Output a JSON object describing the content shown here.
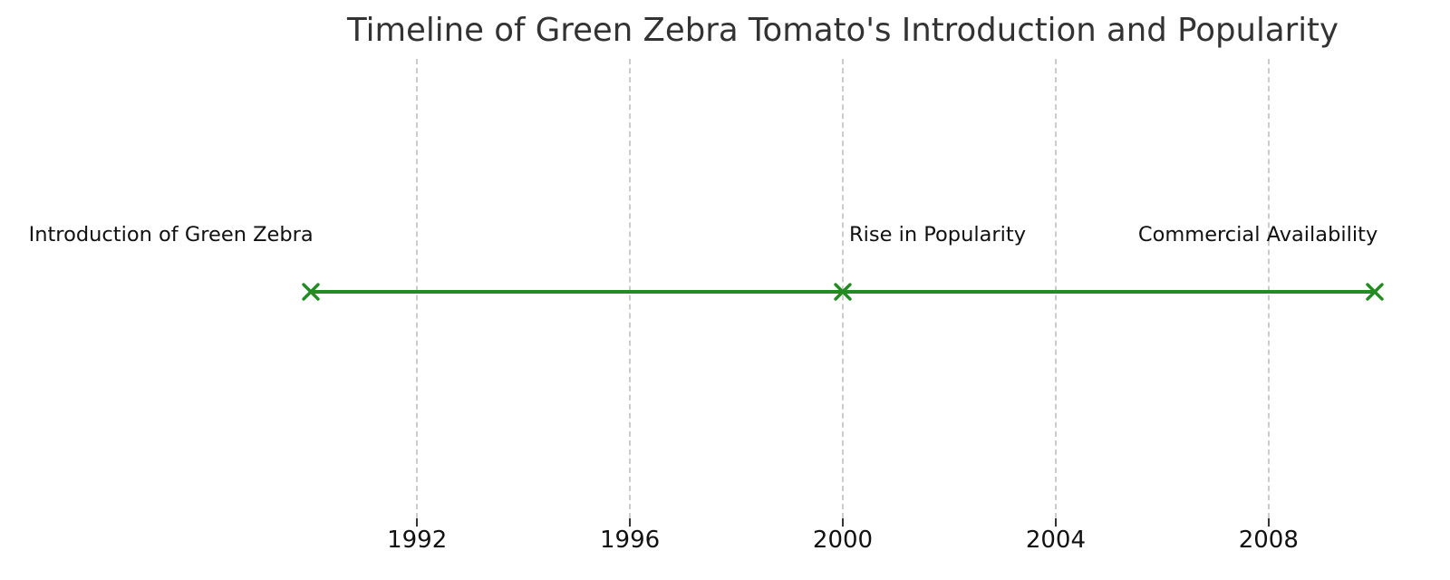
{
  "chart_data": {
    "type": "line",
    "title": "Timeline of Green Zebra Tomato's Introduction and Popularity",
    "events": [
      {
        "year": 1990,
        "label": "Introduction of Green Zebra",
        "label_align": "right"
      },
      {
        "year": 2000,
        "label": "Rise in Popularity",
        "label_align": "left"
      },
      {
        "year": 2010,
        "label": "Commercial Availability",
        "label_align": "right"
      }
    ],
    "x": [
      1990,
      2000,
      2010
    ],
    "y": [
      0,
      0,
      0
    ],
    "marker": "x",
    "xticks": [
      1992,
      1996,
      2000,
      2004,
      2008
    ],
    "xlim": [
      1989,
      2011
    ],
    "ylabel": "",
    "xlabel": "",
    "grid": true,
    "grid_style": "dashed",
    "legend_position": "none",
    "line_color": "#228B22",
    "grid_color": "#cccccc",
    "tick_color": "#333333",
    "text_color": "#111111",
    "title_color": "#333333",
    "background_color": "#ffffff"
  }
}
